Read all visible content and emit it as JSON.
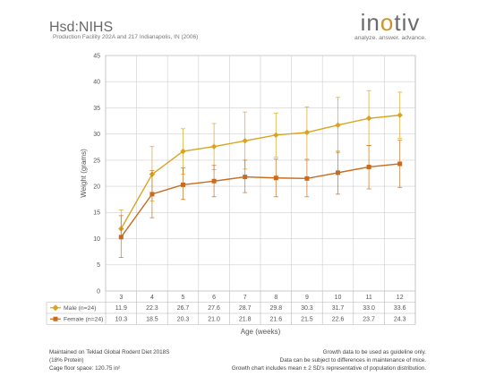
{
  "header": {
    "title": "Hsd:NIHS",
    "subtitle": "Production Facility 202A and 217 Indianapolis, IN (2006)"
  },
  "logo": {
    "word_left": "in",
    "word_o": "o",
    "word_right": "tiv",
    "tagline": "analyze. answer. advance."
  },
  "footer": {
    "left": [
      "Maintained on Teklad Global Rodent Diet 2018S",
      "(18% Protein)",
      "Cage floor space: 120.75 in²"
    ],
    "right": [
      "Growth data to be used as guideline only.",
      "Data can be subject to differences in maintenance of mice.",
      "Growth chart includes mean ± 2 SD's representative of population distribution."
    ]
  },
  "chart_data": {
    "type": "line",
    "ylabel": "Weight (grams)",
    "xlabel": "Age (weeks)",
    "ylim": [
      0,
      45
    ],
    "yticks": [
      0,
      5,
      10,
      15,
      20,
      25,
      30,
      35,
      40,
      45
    ],
    "categories": [
      "3",
      "4",
      "5",
      "6",
      "7",
      "8",
      "9",
      "10",
      "11",
      "12"
    ],
    "grid": true,
    "series": [
      {
        "name": "Male (n=24)",
        "color": "#d9a521",
        "marker": "diamond",
        "values": [
          11.9,
          22.3,
          26.7,
          27.6,
          28.7,
          29.8,
          30.3,
          31.7,
          33.0,
          33.6
        ],
        "values_text": [
          "11.9",
          "22.3",
          "26.7",
          "27.6",
          "28.7",
          "29.8",
          "30.3",
          "31.7",
          "33.0",
          "33.6"
        ],
        "err_low": [
          10.2,
          17.2,
          22.3,
          23.2,
          23.3,
          25.6,
          25.2,
          26.4,
          27.8,
          29.2
        ],
        "err_high": [
          15.5,
          27.6,
          31.0,
          32.0,
          34.2,
          34.0,
          35.2,
          37.0,
          38.3,
          38.0
        ]
      },
      {
        "name": "Female (n=24)",
        "color": "#c96a1e",
        "marker": "square",
        "values": [
          10.3,
          18.5,
          20.3,
          21.0,
          21.8,
          21.6,
          21.5,
          22.6,
          23.7,
          24.3
        ],
        "values_text": [
          "10.3",
          "18.5",
          "20.3",
          "21.0",
          "21.8",
          "21.6",
          "21.5",
          "22.6",
          "23.7",
          "24.3"
        ],
        "err_low": [
          6.4,
          14.0,
          17.5,
          18.0,
          18.8,
          18.0,
          18.0,
          18.5,
          19.5,
          19.8
        ],
        "err_high": [
          14.4,
          23.0,
          23.5,
          24.0,
          25.0,
          25.2,
          25.0,
          26.7,
          27.8,
          28.8
        ]
      }
    ]
  }
}
